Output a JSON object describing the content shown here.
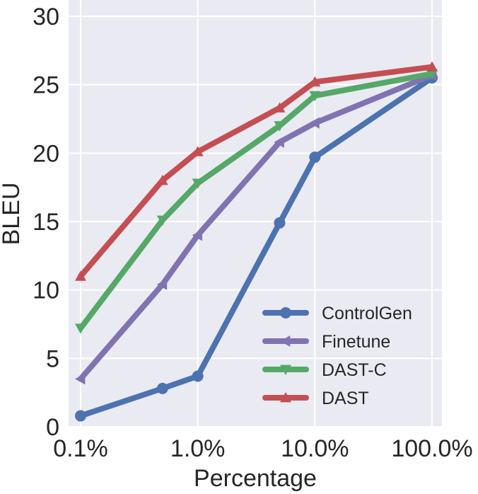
{
  "chart_data": {
    "type": "line",
    "xlabel": "Percentage",
    "ylabel": "BLEU",
    "x_scale": "log",
    "x": [
      0.1,
      0.5,
      1.0,
      5.0,
      10.0,
      100.0
    ],
    "x_ticks": [
      0.1,
      1.0,
      10.0,
      100.0
    ],
    "x_tick_labels": [
      "0.1%",
      "1.0%",
      "10.0%",
      "100.0%"
    ],
    "xlim": [
      0.1,
      100.0
    ],
    "ylim": [
      0,
      30
    ],
    "y_ticks": [
      0,
      5,
      10,
      15,
      20,
      25,
      30
    ],
    "y_tick_labels": [
      "0",
      "5",
      "10",
      "15",
      "20",
      "25",
      "30"
    ],
    "grid": true,
    "legend_position": "lower-right",
    "series": [
      {
        "name": "ControlGen",
        "color": "#4C72B0",
        "marker": "circle",
        "values": [
          0.8,
          2.8,
          3.7,
          14.9,
          19.7,
          25.5
        ]
      },
      {
        "name": "Finetune",
        "color": "#8172B2",
        "marker": "triangle-left",
        "values": [
          3.5,
          10.4,
          14.0,
          20.8,
          22.2,
          25.7
        ]
      },
      {
        "name": "DAST-C",
        "color": "#55A868",
        "marker": "triangle-down",
        "values": [
          7.2,
          15.1,
          17.8,
          22.0,
          24.2,
          25.8
        ]
      },
      {
        "name": "DAST",
        "color": "#C44E52",
        "marker": "triangle-up",
        "values": [
          11.0,
          18.0,
          20.1,
          23.3,
          25.2,
          26.3
        ]
      }
    ]
  }
}
